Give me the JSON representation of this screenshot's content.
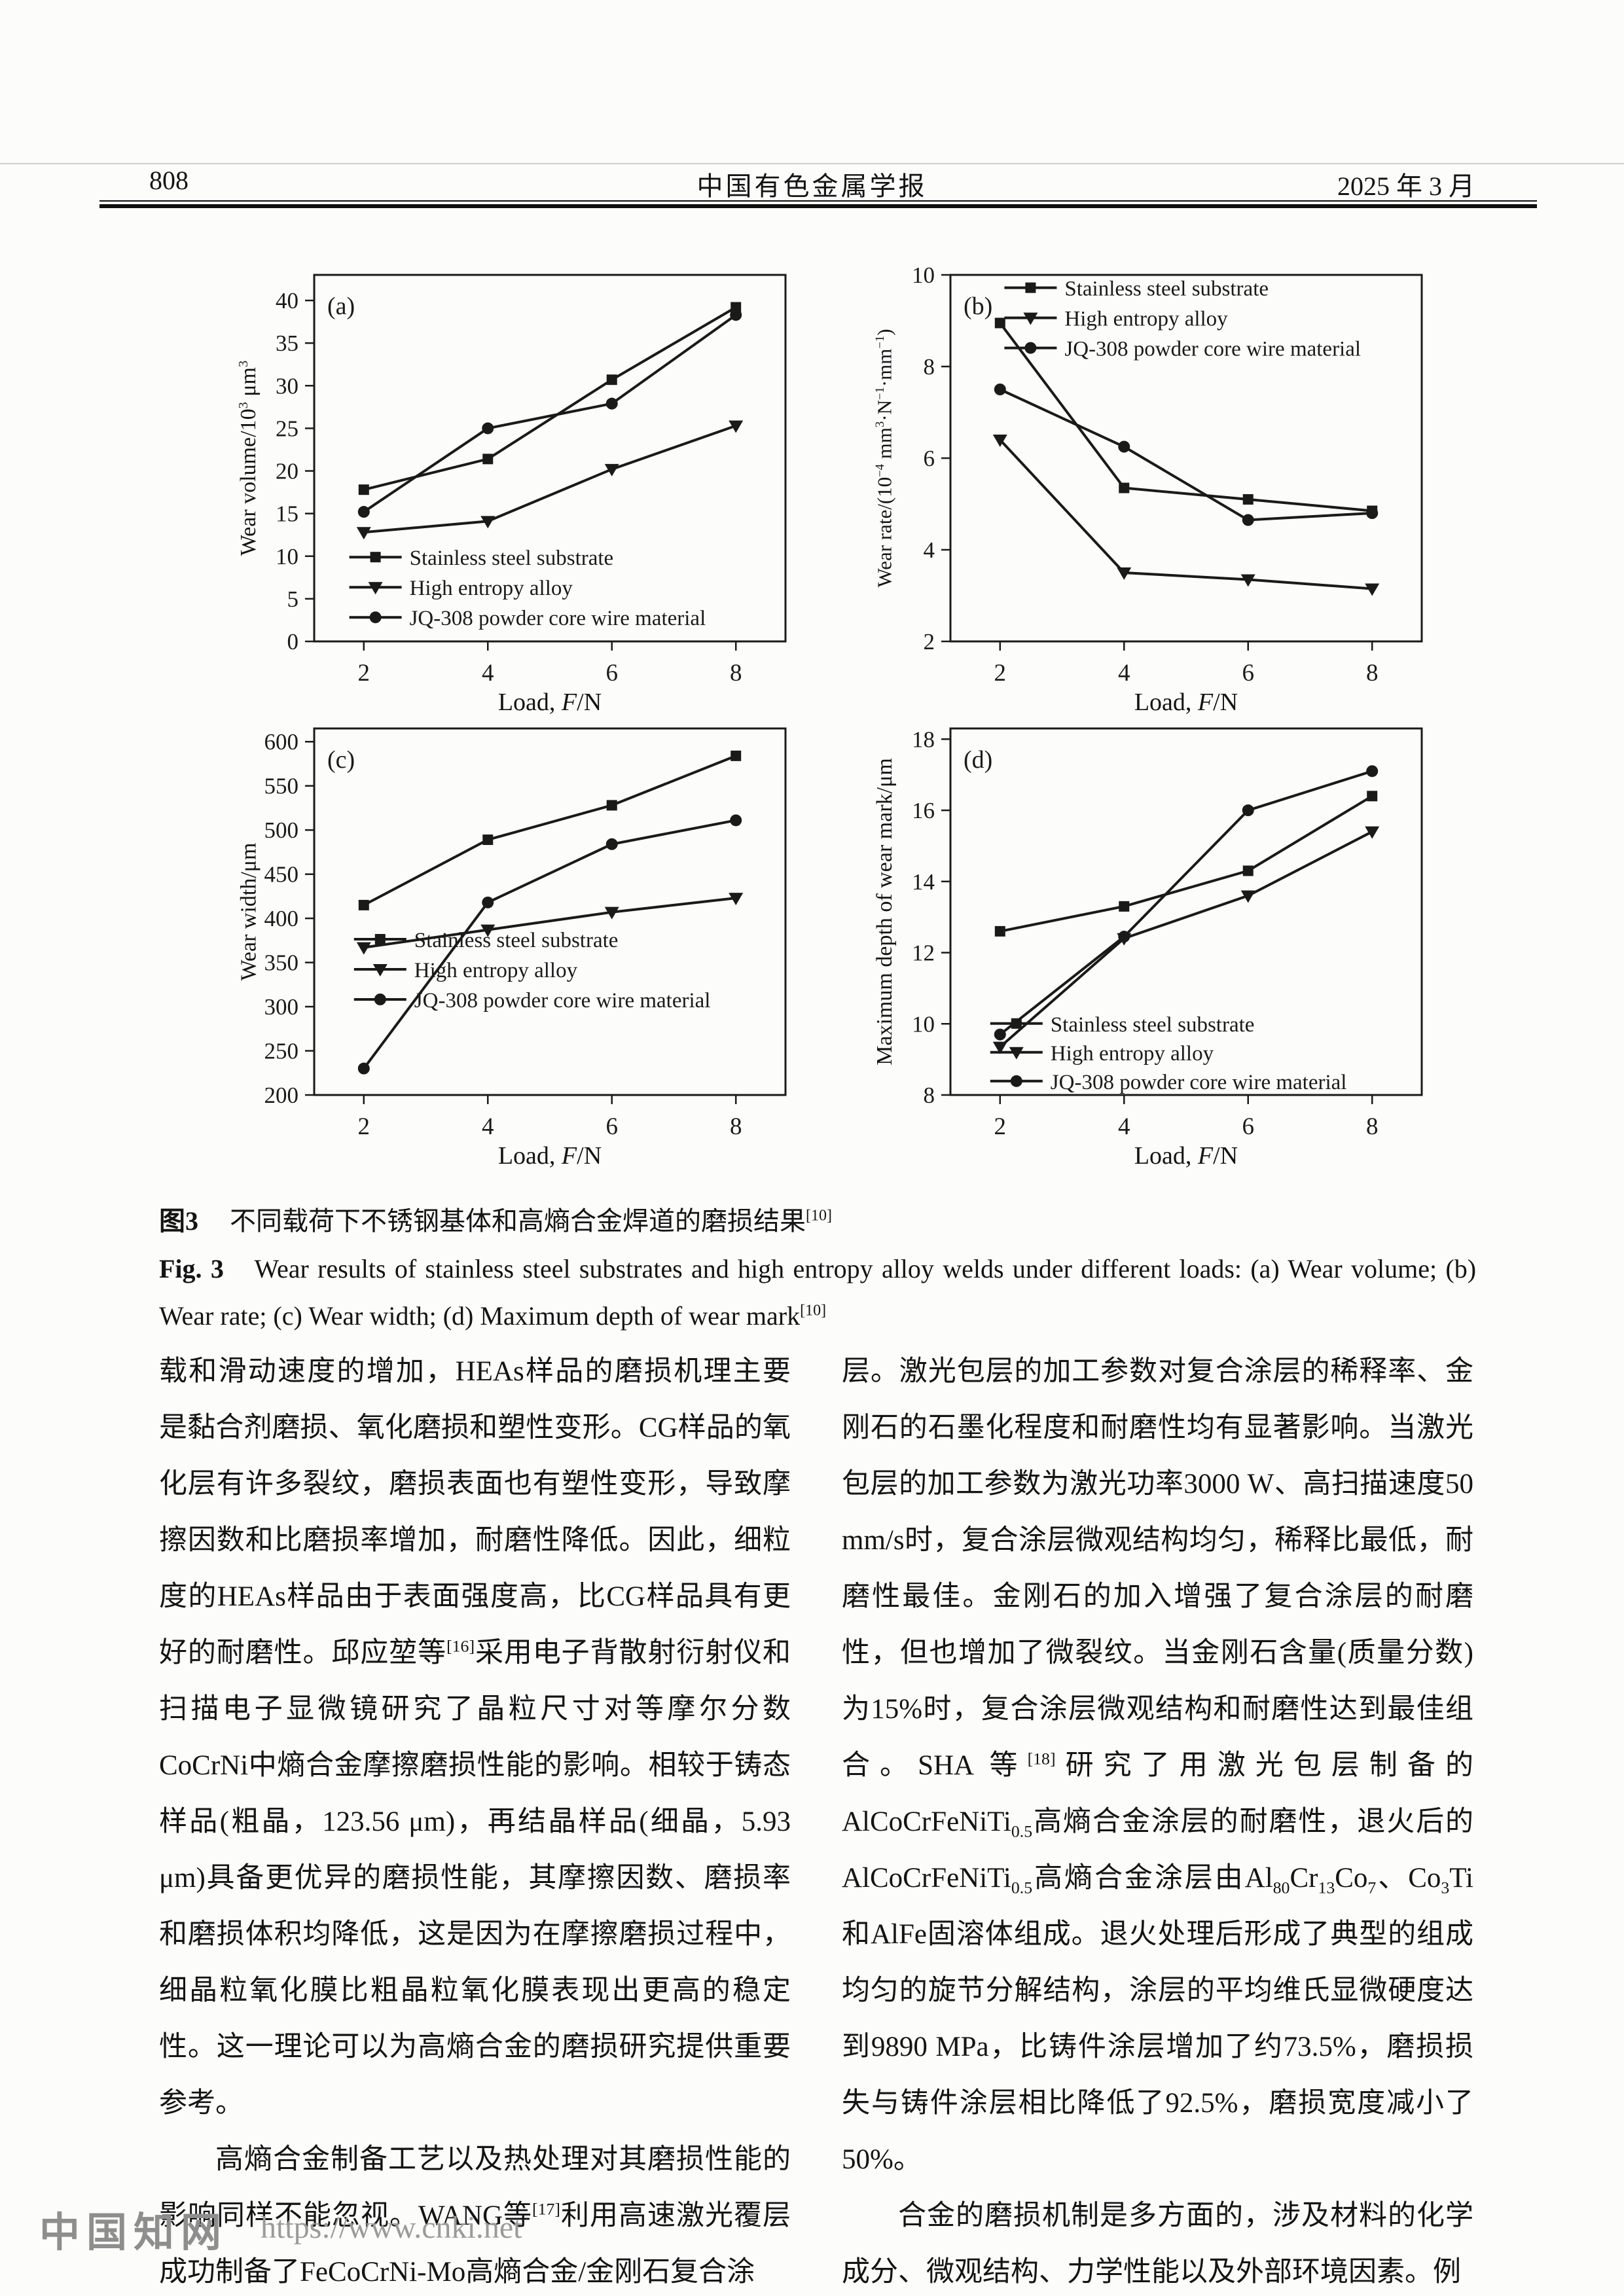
{
  "header": {
    "page_number": "808",
    "journal_title": "中国有色金属学报",
    "issue_date": "2025 年 3 月"
  },
  "figure": {
    "caption_cn": [
      {
        "b": "图3"
      },
      {
        "t": "　不同载荷下不锈钢基体和高熵合金焊道的磨损结果"
      },
      {
        "sup": "[10]"
      }
    ],
    "caption_en": [
      {
        "b": "Fig. 3"
      },
      {
        "t": "　Wear results of stainless steel substrates and high entropy alloy welds under different loads: (a) Wear volume; (b) Wear rate; (c) Wear width; (d) Maximum depth of wear mark"
      },
      {
        "sup": "[10]"
      }
    ]
  },
  "chart_data": [
    {
      "type": "line",
      "panel": "(a)",
      "ylabel": [
        {
          "t": "Wear volume/10"
        },
        {
          "sup": "3"
        },
        {
          "t": " μm"
        },
        {
          "sup": "3"
        }
      ],
      "xlabel": [
        {
          "t": "Load, "
        },
        {
          "i": "F"
        },
        {
          "t": "/N"
        }
      ],
      "x": [
        2,
        4,
        6,
        8
      ],
      "xlim": [
        1.2,
        8.8
      ],
      "ylim": [
        0,
        43
      ],
      "yticks": [
        0,
        5,
        10,
        15,
        20,
        25,
        30,
        35,
        40
      ],
      "xticks": [
        2,
        4,
        6,
        8
      ],
      "grid": false,
      "legend_position": "inside-bottom-left",
      "legend": {
        "fx": 0.13,
        "fy": 0.77,
        "row": 46
      },
      "series": [
        {
          "name": "Stainless steel substrate",
          "marker": "square",
          "values": [
            17.8,
            21.4,
            30.7,
            39.2
          ]
        },
        {
          "name": "High entropy alloy",
          "marker": "triangle-down",
          "values": [
            12.8,
            14.1,
            20.2,
            25.3
          ]
        },
        {
          "name": "JQ-308 powder core wire material",
          "marker": "circle",
          "values": [
            15.2,
            25.0,
            27.9,
            38.3
          ]
        }
      ]
    },
    {
      "type": "line",
      "panel": "(b)",
      "ylabel": [
        {
          "t": "Wear rate/(10"
        },
        {
          "sup": "−4"
        },
        {
          "t": " mm"
        },
        {
          "sup": "3"
        },
        {
          "t": "·N"
        },
        {
          "sup": "−1"
        },
        {
          "t": "·mm"
        },
        {
          "sup": "−1"
        },
        {
          "t": ")"
        }
      ],
      "ylabel_size": 31,
      "xlabel": [
        {
          "t": "Load, "
        },
        {
          "i": "F"
        },
        {
          "t": "/N"
        }
      ],
      "x": [
        2,
        4,
        6,
        8
      ],
      "xlim": [
        1.2,
        8.8
      ],
      "ylim": [
        2,
        10
      ],
      "yticks": [
        2,
        4,
        6,
        8,
        10
      ],
      "xticks": [
        2,
        4,
        6,
        8
      ],
      "grid": false,
      "legend_position": "inside-top",
      "legend": {
        "fx": 0.17,
        "fy": 0.035,
        "row": 46
      },
      "series": [
        {
          "name": "Stainless steel substrate",
          "marker": "square",
          "values": [
            8.95,
            5.35,
            5.1,
            4.85
          ]
        },
        {
          "name": "High entropy alloy",
          "marker": "triangle-down",
          "values": [
            6.4,
            3.5,
            3.35,
            3.15
          ]
        },
        {
          "name": "JQ-308 powder core wire material",
          "marker": "circle",
          "values": [
            7.5,
            6.25,
            4.65,
            4.8
          ]
        }
      ]
    },
    {
      "type": "line",
      "panel": "(c)",
      "ylabel": [
        {
          "t": "Wear width/μm"
        }
      ],
      "xlabel": [
        {
          "t": "Load, "
        },
        {
          "i": "F"
        },
        {
          "t": "/N"
        }
      ],
      "x": [
        2,
        4,
        6,
        8
      ],
      "xlim": [
        1.2,
        8.8
      ],
      "ylim": [
        200,
        615
      ],
      "yticks": [
        200,
        250,
        300,
        350,
        400,
        450,
        500,
        550,
        600
      ],
      "xticks": [
        2,
        4,
        6,
        8
      ],
      "grid": false,
      "legend_position": "inside-bottom-left",
      "legend": {
        "fx": 0.14,
        "fy": 0.575,
        "row": 46
      },
      "series": [
        {
          "name": "Stainless steel substrate",
          "marker": "square",
          "values": [
            415,
            489,
            528,
            584
          ]
        },
        {
          "name": "High entropy alloy",
          "marker": "triangle-down",
          "values": [
            367,
            387,
            407,
            423
          ]
        },
        {
          "name": "JQ-308 powder core wire material",
          "marker": "circle",
          "values": [
            230,
            418,
            484,
            511
          ]
        }
      ]
    },
    {
      "type": "line",
      "panel": "(d)",
      "ylabel": [
        {
          "t": "Maximum depth of wear mark/μm"
        }
      ],
      "xlabel": [
        {
          "t": "Load, "
        },
        {
          "i": "F"
        },
        {
          "t": "/N"
        }
      ],
      "x": [
        2,
        4,
        6,
        8
      ],
      "xlim": [
        1.2,
        8.8
      ],
      "ylim": [
        8,
        18.3
      ],
      "yticks": [
        8,
        10,
        12,
        14,
        16,
        18
      ],
      "xticks": [
        2,
        4,
        6,
        8
      ],
      "grid": false,
      "legend_position": "inside-bottom-left",
      "legend": {
        "fx": 0.14,
        "fy": 0.805,
        "row": 44
      },
      "series": [
        {
          "name": "Stainless steel substrate",
          "marker": "square",
          "values": [
            12.6,
            13.3,
            14.3,
            16.4
          ]
        },
        {
          "name": "High entropy alloy",
          "marker": "triangle-down",
          "values": [
            9.35,
            12.4,
            13.6,
            15.4
          ]
        },
        {
          "name": "JQ-308 powder core wire material",
          "marker": "circle",
          "values": [
            9.7,
            12.45,
            16.0,
            17.1
          ]
        }
      ]
    }
  ],
  "body": {
    "left": [
      [
        {
          "t": "载和滑动速度的增加，HEAs样品的磨损机理主要是黏合剂磨损、氧化磨损和塑性变形。CG样品的氧化层有许多裂纹，磨损表面也有塑性变形，导致摩擦因数和比磨损率增加，耐磨性降低。因此，细粒度的HEAs样品由于表面强度高，比CG样品具有更好的耐磨性。邱应堃等"
        },
        {
          "sup": "[16]"
        },
        {
          "t": "采用电子背散射衍射仪和扫描电子显微镜研究了晶粒尺寸对等摩尔分数CoCrNi中熵合金摩擦磨损性能的影响。相较于铸态样品(粗晶，123.56 μm)，再结晶样品(细晶，5.93 μm)具备更优异的磨损性能，其摩擦因数、磨损率和磨损体积均降低，这是因为在摩擦磨损过程中，细晶粒氧化膜比粗晶粒氧化膜表现出更高的稳定性。这一理论可以为高熵合金的磨损研究提供重要参考。"
        }
      ],
      [
        {
          "t": "高熵合金制备工艺以及热处理对其磨损性能的影响同样不能忽视。WANG等"
        },
        {
          "sup": "[17]"
        },
        {
          "t": "利用高速激光覆层成功制备了FeCoCrNi-Mo高熵合金/金刚石复合涂"
        }
      ]
    ],
    "right": [
      [
        {
          "t": "层。激光包层的加工参数对复合涂层的稀释率、金刚石的石墨化程度和耐磨性均有显著影响。当激光包层的加工参数为激光功率3000 W、高扫描速度50 mm/s时，复合涂层微观结构均匀，稀释比最低，耐磨性最佳。金刚石的加入增强了复合涂层的耐磨性，但也增加了微裂纹。当金刚石含量(质量分数)为15%时，复合涂层微观结构和耐磨性达到最佳组合。SHA 等"
        },
        {
          "sup": "[18]"
        },
        {
          "t": "研究了用激光包层制备的AlCoCrFeNiTi"
        },
        {
          "sub": "0.5"
        },
        {
          "t": "高熵合金涂层的耐磨性，退火后的AlCoCrFeNiTi"
        },
        {
          "sub": "0.5"
        },
        {
          "t": "高熵合金涂层由Al"
        },
        {
          "sub": "80"
        },
        {
          "t": "Cr"
        },
        {
          "sub": "13"
        },
        {
          "t": "Co"
        },
        {
          "sub": "7"
        },
        {
          "t": "、Co"
        },
        {
          "sub": "3"
        },
        {
          "t": "Ti和AlFe固溶体组成。退火处理后形成了典型的组成均匀的旋节分解结构，涂层的平均维氏显微硬度达到9890 MPa，比铸件涂层增加了约73.5%，磨损损失与铸件涂层相比降低了92.5%，磨损宽度减小了50%。"
        }
      ],
      [
        {
          "t": "合金的磨损机制是多方面的，涉及材料的化学成分、微观结构、力学性能以及外部环境因素。例"
        }
      ]
    ]
  },
  "footer": {
    "brand": "中国知网",
    "url": "https://www.cnki.net"
  },
  "colors": {
    "ink": "#141414",
    "footer_gray": "#8e8e8e",
    "page_bg": "#fcfcfb"
  }
}
